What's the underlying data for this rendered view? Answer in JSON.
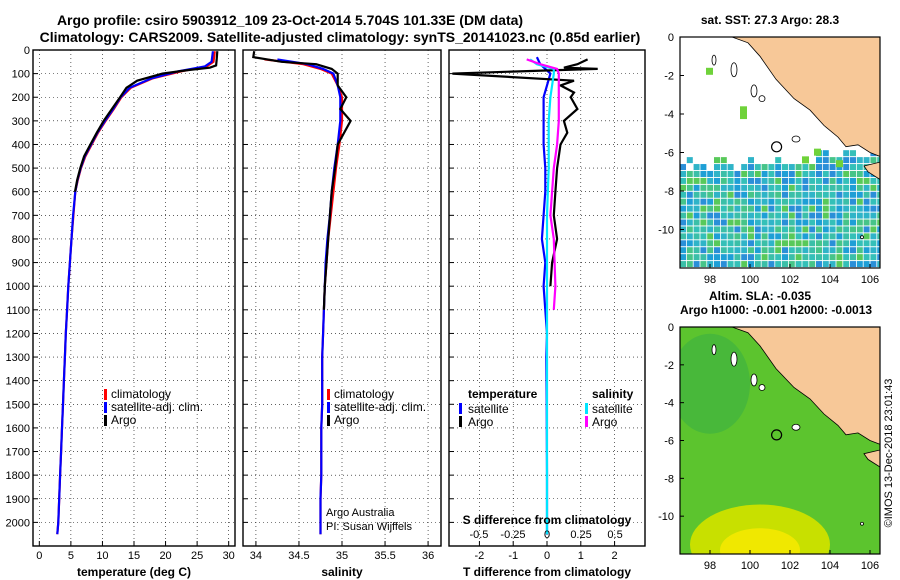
{
  "header": {
    "line1": "Argo profile: csiro 5903912_109 23-Oct-2014 5.704S 101.33E (DM data)",
    "line2": "Climatology: CARS2009. Satellite-adjusted climatology: synTS_20141023.nc (0.85d earlier)"
  },
  "colors": {
    "climatology": "#ff0000",
    "satellite": "#0000ff",
    "argo": "#000000",
    "argo_salinity_diff": "#ff00ff",
    "satellite_salinity_diff": "#00e5ff",
    "land": "#f7c898"
  },
  "credits": {
    "line1": "Argo Australia",
    "line2": "PI: Susan Wijffels",
    "imos": "©IMOS 13-Dec-2018 23:01:43"
  },
  "chart_data": [
    {
      "id": "temperature",
      "type": "line",
      "xlabel": "temperature (deg C)",
      "ylabel": "",
      "xlim": [
        -1,
        31
      ],
      "ylim": [
        2100,
        0
      ],
      "y_reversed": true,
      "grid": true,
      "xticks": [
        0,
        5,
        10,
        15,
        20,
        25,
        30
      ],
      "xtick_labels": [
        "0",
        "5",
        "10",
        "15",
        "20",
        "25",
        "30"
      ],
      "yticks": [
        0,
        100,
        200,
        300,
        400,
        500,
        600,
        700,
        800,
        900,
        1000,
        1100,
        1200,
        1300,
        1400,
        1500,
        1600,
        1700,
        1800,
        1900,
        2000
      ],
      "ytick_labels": [
        "0",
        "100",
        "200",
        "300",
        "400",
        "500",
        "600",
        "700",
        "800",
        "900",
        "1000",
        "1100",
        "1200",
        "1300",
        "1400",
        "1500",
        "1600",
        "1700",
        "1800",
        "1900",
        "2000"
      ],
      "legend": [
        "climatology",
        "satellite-adj. clim.",
        "Argo"
      ],
      "legend_position": "lower-right",
      "series": [
        {
          "name": "climatology",
          "color": "#ff0000",
          "x": [
            27.8,
            27.6,
            26.5,
            22.5,
            18,
            14.5,
            13,
            11.8,
            10.5,
            9.3,
            8.3,
            7.3,
            6.6,
            6.1,
            5.7,
            5.4,
            5.1,
            4.85,
            4.6,
            4.4,
            4.2,
            4.05,
            3.9,
            3.75,
            3.6,
            3.45,
            3.3,
            3.15,
            3.0,
            2.85
          ],
          "y": [
            5,
            50,
            70,
            90,
            120,
            160,
            200,
            250,
            300,
            350,
            400,
            450,
            500,
            550,
            600,
            700,
            800,
            900,
            1000,
            1100,
            1200,
            1300,
            1400,
            1500,
            1600,
            1700,
            1800,
            1900,
            2000,
            2050
          ]
        },
        {
          "name": "satellite-adj. clim.",
          "color": "#0000ff",
          "x": [
            27.5,
            27.3,
            26.2,
            22.0,
            17.8,
            14.3,
            12.9,
            11.7,
            10.4,
            9.2,
            8.2,
            7.2,
            6.55,
            6.05,
            5.7,
            5.35,
            5.1,
            4.85,
            4.6,
            4.4,
            4.2,
            4.05,
            3.9,
            3.75,
            3.6,
            3.45,
            3.3,
            3.15,
            3.0,
            2.85
          ],
          "y": [
            5,
            50,
            70,
            90,
            120,
            160,
            200,
            250,
            300,
            350,
            400,
            450,
            500,
            550,
            600,
            700,
            800,
            900,
            1000,
            1100,
            1200,
            1300,
            1400,
            1500,
            1600,
            1700,
            1800,
            1900,
            2000,
            2050
          ]
        },
        {
          "name": "Argo",
          "color": "#000000",
          "x": [
            28.2,
            28.1,
            28.0,
            27.0,
            23.5,
            19.5,
            15.5,
            13.8,
            12.8,
            11.5,
            10.2,
            9.1,
            8.1,
            7.1,
            6.5,
            6.0,
            5.65
          ],
          "y": [
            5,
            40,
            65,
            75,
            85,
            100,
            130,
            160,
            200,
            250,
            300,
            350,
            400,
            450,
            500,
            550,
            600
          ]
        }
      ]
    },
    {
      "id": "salinity",
      "type": "line",
      "xlabel": "salinity",
      "xlim": [
        33.85,
        36.15
      ],
      "ylim": [
        2100,
        0
      ],
      "y_reversed": true,
      "grid": true,
      "xticks": [
        34,
        34.5,
        35,
        35.5,
        36
      ],
      "xtick_labels": [
        "34",
        "34.5",
        "35",
        "35.5",
        "36"
      ],
      "legend": [
        "climatology",
        "satellite-adj. clim.",
        "Argo"
      ],
      "legend_position": "lower-right",
      "series": [
        {
          "name": "climatology",
          "color": "#ff0000",
          "x": [
            34.1,
            34.55,
            34.75,
            34.88,
            34.95,
            35.0,
            35.0,
            34.97,
            34.93,
            34.9,
            34.87,
            34.84,
            34.82,
            34.8,
            34.79,
            34.78,
            34.77,
            34.77,
            34.77,
            34.76,
            34.76,
            34.76,
            34.75,
            34.75
          ],
          "y": [
            40,
            60,
            80,
            100,
            150,
            200,
            300,
            400,
            500,
            600,
            700,
            800,
            900,
            1000,
            1100,
            1200,
            1300,
            1400,
            1500,
            1600,
            1700,
            1800,
            1900,
            2050
          ]
        },
        {
          "name": "satellite-adj. clim.",
          "color": "#0000ff",
          "x": [
            34.25,
            34.6,
            34.78,
            34.9,
            34.95,
            34.98,
            34.98,
            34.95,
            34.91,
            34.88,
            34.86,
            34.83,
            34.81,
            34.8,
            34.79,
            34.78,
            34.77,
            34.77,
            34.77,
            34.76,
            34.76,
            34.76,
            34.75,
            34.75
          ],
          "y": [
            40,
            60,
            80,
            100,
            150,
            200,
            300,
            400,
            500,
            600,
            700,
            800,
            900,
            1000,
            1100,
            1200,
            1300,
            1400,
            1500,
            1600,
            1700,
            1800,
            1900,
            2050
          ]
        },
        {
          "name": "Argo",
          "color": "#000000",
          "x": [
            33.98,
            33.97,
            34.3,
            34.7,
            34.88,
            34.95,
            34.95,
            35.05,
            34.98,
            35.1,
            34.95,
            34.92,
            34.88,
            34.86,
            34.84,
            34.82,
            34.8,
            34.79
          ],
          "y": [
            5,
            30,
            50,
            60,
            80,
            100,
            150,
            200,
            250,
            300,
            400,
            500,
            600,
            700,
            800,
            900,
            1000,
            1100
          ]
        }
      ]
    },
    {
      "id": "difference",
      "type": "line",
      "xlabel": "T difference from climatology",
      "xlabel2": "S difference from climatology",
      "xlim": [
        -2.9,
        2.9
      ],
      "ylim": [
        2100,
        0
      ],
      "y_reversed": true,
      "grid": true,
      "xticks": [
        -2,
        -1,
        0,
        1,
        2
      ],
      "xtick_labels": [
        "-2",
        "-1",
        "0",
        "1",
        "2"
      ],
      "xticks2": [
        -0.5,
        -0.25,
        0,
        0.25,
        0.5
      ],
      "xtick_labels2": [
        "-0.5",
        "-0.25",
        "0",
        "0.25",
        "0.5"
      ],
      "legend_temperature_title": "temperature",
      "legend_salinity_title": "salinity",
      "legend_temperature": [
        "satellite",
        "Argo"
      ],
      "legend_salinity": [
        "satellite",
        "Argo"
      ],
      "legend_position": "lower",
      "series": [
        {
          "name": "temperature satellite",
          "color": "#0000ff",
          "x": [
            -0.3,
            -0.2,
            0.1,
            0.0,
            -0.1,
            -0.1,
            -0.1,
            -0.05,
            -0.05,
            -0.1,
            -0.15,
            -0.05,
            -0.1,
            -0.05,
            0,
            -0.02,
            -0.01,
            0.0,
            0.0
          ],
          "y": [
            30,
            60,
            100,
            150,
            200,
            300,
            400,
            500,
            600,
            700,
            800,
            900,
            1000,
            1100,
            1200,
            1300,
            1500,
            1800,
            2050
          ]
        },
        {
          "name": "temperature Argo",
          "color": "#000000",
          "x": [
            1.2,
            0.9,
            0.5,
            1.5,
            0.3,
            -2.8,
            0.8,
            0.4,
            0.8,
            0.7,
            0.9,
            0.5,
            0.6,
            0.4,
            0.3,
            0.25,
            0.2,
            0.3,
            0.15,
            0.1
          ],
          "y": [
            40,
            60,
            75,
            80,
            85,
            100,
            130,
            150,
            180,
            200,
            250,
            300,
            350,
            400,
            500,
            600,
            700,
            800,
            900,
            1000
          ]
        },
        {
          "name": "salinity satellite",
          "color": "#00e5ff",
          "x": [
            -0.5,
            -0.3,
            0.2,
            0.2,
            0.1,
            0.05,
            0.05,
            0.0,
            0.0,
            0.0,
            0.0,
            0.0,
            0.0
          ],
          "y": [
            40,
            60,
            80,
            100,
            200,
            300,
            500,
            700,
            900,
            1100,
            1300,
            1600,
            2050
          ]
        },
        {
          "name": "salinity Argo",
          "color": "#ff00ff",
          "x": [
            -0.6,
            -0.2,
            0.3,
            0.35,
            0.35,
            0.35,
            0.3,
            0.2,
            0.15,
            0.1,
            0.2,
            0.25,
            0.2
          ],
          "y": [
            40,
            60,
            80,
            100,
            200,
            300,
            400,
            500,
            600,
            700,
            800,
            1000,
            1100
          ]
        }
      ]
    },
    {
      "id": "sst_map",
      "type": "heatmap",
      "title": "sat. SST: 27.3 Argo: 28.3",
      "xlim": [
        96.5,
        106.5
      ],
      "ylim": [
        -12,
        0
      ],
      "xticks": [
        98,
        100,
        102,
        104,
        106
      ],
      "xtick_labels": [
        "98",
        "100",
        "102",
        "104",
        "106"
      ],
      "yticks": [
        0,
        -2,
        -4,
        -6,
        -8,
        -10
      ],
      "ytick_labels": [
        "0",
        "-2",
        "-4",
        "-6",
        "-8",
        "-10"
      ],
      "float_position": {
        "lon": 101.33,
        "lat": -5.704
      },
      "field_description": "satellite SST; cool blue-green south of 6S, sparse coverage near coast"
    },
    {
      "id": "sla_map",
      "type": "heatmap",
      "title": "Altim. SLA: -0.035",
      "title2": "Argo h1000: -0.001 h2000: -0.0013",
      "xlim": [
        96.5,
        106.5
      ],
      "ylim": [
        -12,
        0
      ],
      "xticks": [
        98,
        100,
        102,
        104,
        106
      ],
      "xtick_labels": [
        "98",
        "100",
        "102",
        "104",
        "106"
      ],
      "yticks": [
        0,
        -2,
        -4,
        -6,
        -8,
        -10
      ],
      "ytick_labels": [
        "0",
        "-2",
        "-4",
        "-6",
        "-8",
        "-10"
      ],
      "float_position": {
        "lon": 101.33,
        "lat": -5.704
      }
    }
  ]
}
